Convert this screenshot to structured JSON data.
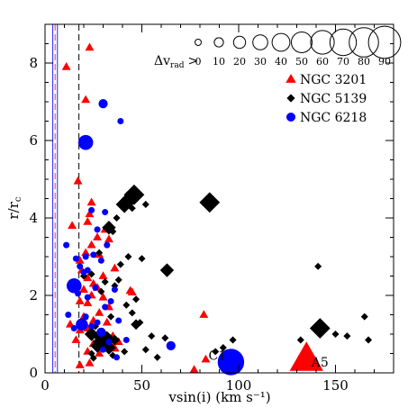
{
  "chart_data": {
    "type": "scatter",
    "title": "",
    "xlabel": "vsin(i)  (km s⁻¹)",
    "ylabel": "r/rₙ",
    "ylabel_main": "r/r",
    "ylabel_sub": "c",
    "xlim": [
      0,
      180
    ],
    "ylim": [
      0,
      9
    ],
    "xticks": [
      0,
      50,
      100,
      150
    ],
    "yticks": [
      0,
      2,
      4,
      6,
      8
    ],
    "x_minor_step": 10,
    "y_minor_step": 0.5,
    "grid": false,
    "size_legend": {
      "label": "Δv",
      "label_sub": "rad",
      "label_suffix": ">",
      "values": [
        0,
        10,
        20,
        30,
        40,
        50,
        60,
        70,
        80,
        90
      ]
    },
    "legend_position": "top-right",
    "vertical_lines": [
      {
        "x": 4.0,
        "color": "#2222ff",
        "style": "solid"
      },
      {
        "x": 5.2,
        "color": "#ff3333",
        "style": "dashed"
      },
      {
        "x": 6.4,
        "color": "#2222ff",
        "style": "solid"
      },
      {
        "x": 17.5,
        "color": "#000000",
        "style": "dashed"
      }
    ],
    "annotations": [
      {
        "text": "C1",
        "x": 89,
        "y": 0.45
      },
      {
        "text": "A5",
        "x": 142,
        "y": 0.28
      }
    ],
    "series": [
      {
        "name": "NGC 3201",
        "marker": "triangle",
        "color": "#ff0000",
        "points": [
          {
            "x": 11,
            "y": 7.9,
            "dv": 0
          },
          {
            "x": 23,
            "y": 8.4,
            "dv": 0
          },
          {
            "x": 21,
            "y": 7.05,
            "dv": 0
          },
          {
            "x": 17,
            "y": 4.95,
            "dv": 0
          },
          {
            "x": 24,
            "y": 4.4,
            "dv": 0
          },
          {
            "x": 23,
            "y": 4.1,
            "dv": 0
          },
          {
            "x": 22,
            "y": 3.9,
            "dv": 0
          },
          {
            "x": 14,
            "y": 3.8,
            "dv": 0
          },
          {
            "x": 31,
            "y": 3.7,
            "dv": 0
          },
          {
            "x": 27,
            "y": 3.5,
            "dv": 0
          },
          {
            "x": 33,
            "y": 3.45,
            "dv": 0
          },
          {
            "x": 24,
            "y": 3.3,
            "dv": 0
          },
          {
            "x": 21,
            "y": 3.1,
            "dv": 0
          },
          {
            "x": 28,
            "y": 3.05,
            "dv": 0
          },
          {
            "x": 18,
            "y": 2.9,
            "dv": 0
          },
          {
            "x": 19,
            "y": 2.65,
            "dv": 0
          },
          {
            "x": 36,
            "y": 2.7,
            "dv": 0
          },
          {
            "x": 30,
            "y": 2.5,
            "dv": 0
          },
          {
            "x": 22,
            "y": 2.45,
            "dv": 0
          },
          {
            "x": 25,
            "y": 2.3,
            "dv": 0
          },
          {
            "x": 27,
            "y": 2.2,
            "dv": 0
          },
          {
            "x": 20,
            "y": 2.15,
            "dv": 0
          },
          {
            "x": 44,
            "y": 2.12,
            "dv": 0
          },
          {
            "x": 45,
            "y": 2.08,
            "dv": 0
          },
          {
            "x": 24,
            "y": 2.0,
            "dv": 0
          },
          {
            "x": 30,
            "y": 1.95,
            "dv": 0
          },
          {
            "x": 18,
            "y": 1.85,
            "dv": 0
          },
          {
            "x": 22,
            "y": 1.8,
            "dv": 0
          },
          {
            "x": 33,
            "y": 1.7,
            "dv": 0
          },
          {
            "x": 28,
            "y": 1.55,
            "dv": 0
          },
          {
            "x": 82,
            "y": 1.5,
            "dv": 0
          },
          {
            "x": 20,
            "y": 1.45,
            "dv": 0
          },
          {
            "x": 25,
            "y": 1.35,
            "dv": 0
          },
          {
            "x": 32,
            "y": 1.3,
            "dv": 0
          },
          {
            "x": 13,
            "y": 1.25,
            "dv": 0
          },
          {
            "x": 22,
            "y": 1.15,
            "dv": 0
          },
          {
            "x": 18,
            "y": 1.1,
            "dv": 0
          },
          {
            "x": 30,
            "y": 1.05,
            "dv": 0
          },
          {
            "x": 35,
            "y": 0.95,
            "dv": 0
          },
          {
            "x": 38,
            "y": 0.8,
            "dv": 0
          },
          {
            "x": 16,
            "y": 0.85,
            "dv": 0
          },
          {
            "x": 25,
            "y": 0.75,
            "dv": 0
          },
          {
            "x": 34,
            "y": 0.7,
            "dv": 20
          },
          {
            "x": 22,
            "y": 0.55,
            "dv": 0
          },
          {
            "x": 28,
            "y": 0.5,
            "dv": 0
          },
          {
            "x": 83,
            "y": 0.35,
            "dv": 0
          },
          {
            "x": 23,
            "y": 0.25,
            "dv": 0
          },
          {
            "x": 77,
            "y": 0.08,
            "dv": 0
          },
          {
            "x": 18,
            "y": 0.2,
            "dv": 0
          },
          {
            "x": 135,
            "y": 0.35,
            "dv": 60
          }
        ]
      },
      {
        "name": "NGC 5139",
        "marker": "diamond",
        "color": "#000000",
        "points": [
          {
            "x": 46,
            "y": 4.6,
            "dv": 40
          },
          {
            "x": 44,
            "y": 4.5,
            "dv": 30
          },
          {
            "x": 41,
            "y": 4.35,
            "dv": 30
          },
          {
            "x": 85,
            "y": 4.4,
            "dv": 40
          },
          {
            "x": 45,
            "y": 4.25,
            "dv": 0
          },
          {
            "x": 52,
            "y": 4.35,
            "dv": 0
          },
          {
            "x": 37,
            "y": 4.0,
            "dv": 0
          },
          {
            "x": 33,
            "y": 3.75,
            "dv": 20
          },
          {
            "x": 35,
            "y": 3.65,
            "dv": 0
          },
          {
            "x": 28,
            "y": 3.1,
            "dv": 0
          },
          {
            "x": 43,
            "y": 3.0,
            "dv": 0
          },
          {
            "x": 50,
            "y": 2.95,
            "dv": 0
          },
          {
            "x": 39,
            "y": 2.8,
            "dv": 0
          },
          {
            "x": 141,
            "y": 2.75,
            "dv": 0
          },
          {
            "x": 63,
            "y": 2.65,
            "dv": 20
          },
          {
            "x": 24,
            "y": 2.55,
            "dv": 0
          },
          {
            "x": 20,
            "y": 2.5,
            "dv": 0
          },
          {
            "x": 38,
            "y": 2.4,
            "dv": 0
          },
          {
            "x": 31,
            "y": 2.35,
            "dv": 0
          },
          {
            "x": 36,
            "y": 2.25,
            "dv": 0
          },
          {
            "x": 29,
            "y": 2.1,
            "dv": 0
          },
          {
            "x": 47,
            "y": 1.9,
            "dv": 0
          },
          {
            "x": 42,
            "y": 1.75,
            "dv": 0
          },
          {
            "x": 45,
            "y": 1.55,
            "dv": 0
          },
          {
            "x": 34,
            "y": 1.45,
            "dv": 0
          },
          {
            "x": 165,
            "y": 1.45,
            "dv": 0
          },
          {
            "x": 49,
            "y": 1.3,
            "dv": 0
          },
          {
            "x": 47,
            "y": 1.25,
            "dv": 10
          },
          {
            "x": 26,
            "y": 1.2,
            "dv": 0
          },
          {
            "x": 30,
            "y": 1.05,
            "dv": 0
          },
          {
            "x": 142,
            "y": 1.15,
            "dv": 40
          },
          {
            "x": 24,
            "y": 1.0,
            "dv": 20
          },
          {
            "x": 28,
            "y": 0.95,
            "dv": 20
          },
          {
            "x": 32,
            "y": 0.9,
            "dv": 20
          },
          {
            "x": 150,
            "y": 1.0,
            "dv": 0
          },
          {
            "x": 55,
            "y": 0.95,
            "dv": 0
          },
          {
            "x": 62,
            "y": 0.9,
            "dv": 0
          },
          {
            "x": 36,
            "y": 0.85,
            "dv": 10
          },
          {
            "x": 29,
            "y": 0.8,
            "dv": 30
          },
          {
            "x": 156,
            "y": 0.95,
            "dv": 0
          },
          {
            "x": 167,
            "y": 0.85,
            "dv": 0
          },
          {
            "x": 97,
            "y": 0.85,
            "dv": 0
          },
          {
            "x": 27,
            "y": 0.7,
            "dv": 20
          },
          {
            "x": 33,
            "y": 0.65,
            "dv": 20
          },
          {
            "x": 52,
            "y": 0.6,
            "dv": 0
          },
          {
            "x": 41,
            "y": 0.55,
            "dv": 0
          },
          {
            "x": 88,
            "y": 0.55,
            "dv": 0
          },
          {
            "x": 24,
            "y": 0.5,
            "dv": 0
          },
          {
            "x": 35,
            "y": 0.45,
            "dv": 0
          },
          {
            "x": 58,
            "y": 0.4,
            "dv": 0
          },
          {
            "x": 92,
            "y": 0.65,
            "dv": 0
          },
          {
            "x": 132,
            "y": 0.85,
            "dv": 0
          },
          {
            "x": 100,
            "y": 0.3,
            "dv": 0
          },
          {
            "x": 25,
            "y": 0.38,
            "dv": 0
          }
        ]
      },
      {
        "name": "NGC 6218",
        "marker": "circle",
        "color": "#0000ff",
        "points": [
          {
            "x": 30,
            "y": 6.95,
            "dv": 10
          },
          {
            "x": 39,
            "y": 6.5,
            "dv": 0
          },
          {
            "x": 21,
            "y": 5.95,
            "dv": 30
          },
          {
            "x": 24,
            "y": 4.2,
            "dv": 0
          },
          {
            "x": 31,
            "y": 4.15,
            "dv": 0
          },
          {
            "x": 27,
            "y": 3.7,
            "dv": 0
          },
          {
            "x": 32,
            "y": 3.3,
            "dv": 0
          },
          {
            "x": 11,
            "y": 3.3,
            "dv": 0
          },
          {
            "x": 25,
            "y": 3.05,
            "dv": 0
          },
          {
            "x": 21,
            "y": 3.0,
            "dv": 0
          },
          {
            "x": 16,
            "y": 2.95,
            "dv": 0
          },
          {
            "x": 29,
            "y": 2.9,
            "dv": 0
          },
          {
            "x": 18,
            "y": 2.75,
            "dv": 0
          },
          {
            "x": 22,
            "y": 2.65,
            "dv": 0
          },
          {
            "x": 20,
            "y": 2.6,
            "dv": 0
          },
          {
            "x": 15,
            "y": 2.25,
            "dv": 30
          },
          {
            "x": 26,
            "y": 2.2,
            "dv": 0
          },
          {
            "x": 36,
            "y": 2.15,
            "dv": 0
          },
          {
            "x": 17,
            "y": 2.05,
            "dv": 0
          },
          {
            "x": 22,
            "y": 1.95,
            "dv": 0
          },
          {
            "x": 34,
            "y": 1.85,
            "dv": 0
          },
          {
            "x": 31,
            "y": 1.7,
            "dv": 0
          },
          {
            "x": 12,
            "y": 1.5,
            "dv": 0
          },
          {
            "x": 21,
            "y": 1.45,
            "dv": 0
          },
          {
            "x": 38,
            "y": 1.35,
            "dv": 0
          },
          {
            "x": 27,
            "y": 1.3,
            "dv": 0
          },
          {
            "x": 19,
            "y": 1.25,
            "dv": 20
          },
          {
            "x": 15,
            "y": 1.15,
            "dv": 0
          },
          {
            "x": 24,
            "y": 1.2,
            "dv": 0
          },
          {
            "x": 29,
            "y": 1.05,
            "dv": 10
          },
          {
            "x": 33,
            "y": 0.8,
            "dv": 0
          },
          {
            "x": 42,
            "y": 0.85,
            "dv": 0
          },
          {
            "x": 65,
            "y": 0.7,
            "dv": 10
          },
          {
            "x": 30,
            "y": 0.6,
            "dv": 0
          },
          {
            "x": 37,
            "y": 0.4,
            "dv": 0
          },
          {
            "x": 96,
            "y": 0.28,
            "dv": 70
          }
        ]
      }
    ]
  }
}
